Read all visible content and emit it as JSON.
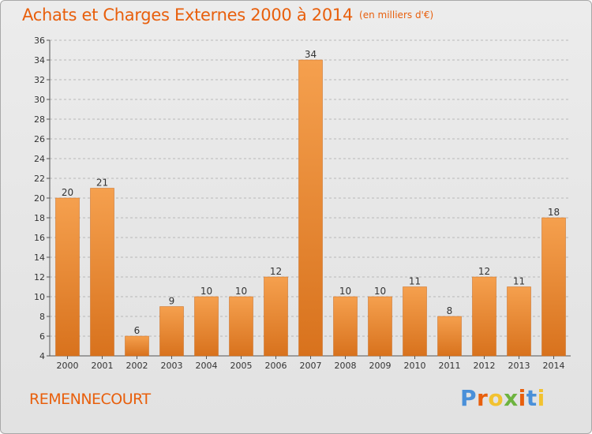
{
  "header": {
    "title": "Achats et Charges Externes 2000 à 2014",
    "subtitle": "(en milliers d'€)"
  },
  "footer": {
    "commune": "REMENNECOURT",
    "logo_text": "Proxiti",
    "logo_colors": [
      "#4a90d9",
      "#e85f0c",
      "#f2c230",
      "#6db33f",
      "#e85f0c",
      "#4a90d9",
      "#f2c230"
    ]
  },
  "chart_data": {
    "type": "bar",
    "categories": [
      "2000",
      "2001",
      "2002",
      "2003",
      "2004",
      "2005",
      "2006",
      "2007",
      "2008",
      "2009",
      "2010",
      "2011",
      "2012",
      "2013",
      "2014"
    ],
    "values": [
      20,
      21,
      6,
      9,
      10,
      10,
      12,
      34,
      10,
      10,
      11,
      8,
      12,
      11,
      18
    ],
    "xlabel": "",
    "ylabel": "",
    "ylim": [
      4,
      36
    ],
    "yticks": [
      4,
      6,
      8,
      10,
      12,
      14,
      16,
      18,
      20,
      22,
      24,
      26,
      28,
      30,
      32,
      34,
      36
    ],
    "grid": "horizontal dashed",
    "bar_color_top": "#f5a04e",
    "bar_color_bottom": "#d8721d",
    "data_labels": true
  }
}
